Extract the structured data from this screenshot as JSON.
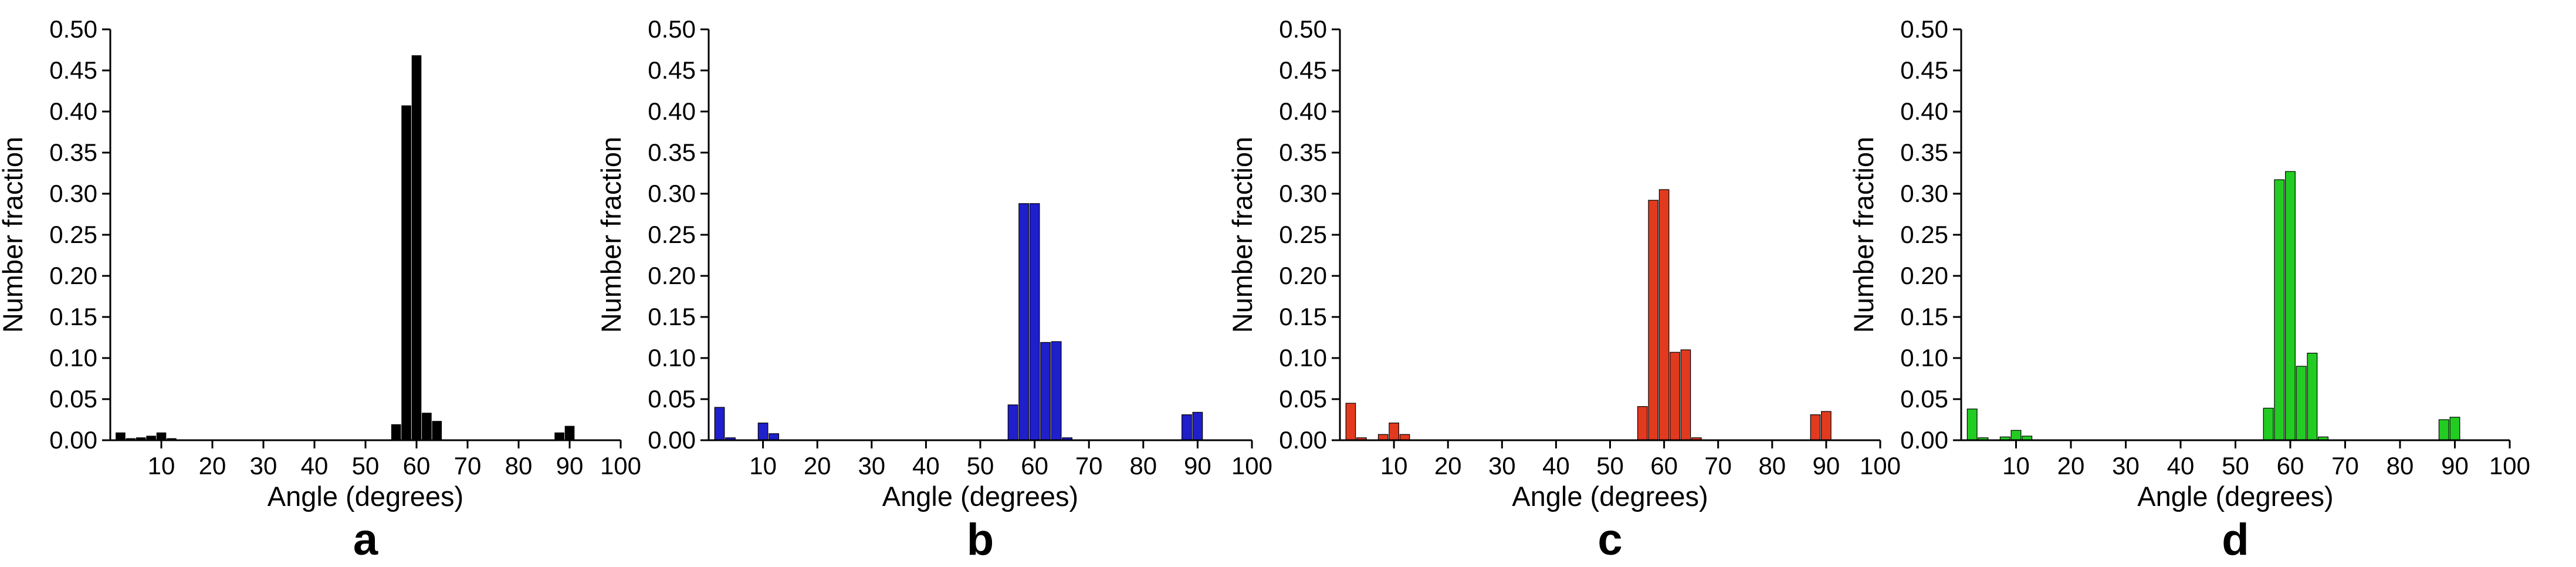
{
  "chart_data": [
    {
      "type": "bar",
      "panel_label": "a",
      "color": "#000000",
      "xlabel": "Angle (degrees)",
      "ylabel": "Number fraction",
      "xlim": [
        0,
        100
      ],
      "ylim": [
        0,
        0.5
      ],
      "xticks": [
        "10",
        "20",
        "30",
        "40",
        "50",
        "60",
        "70",
        "80",
        "90",
        "100"
      ],
      "yticks": [
        "0.00",
        "0.05",
        "0.10",
        "0.15",
        "0.20",
        "0.25",
        "0.30",
        "0.35",
        "0.40",
        "0.45",
        "0.50"
      ],
      "bin_width": 2,
      "x": [
        2,
        4,
        6,
        8,
        10,
        12,
        56,
        58,
        60,
        62,
        64,
        88,
        90
      ],
      "values": [
        0.009,
        0.002,
        0.003,
        0.005,
        0.009,
        0.002,
        0.019,
        0.407,
        0.468,
        0.033,
        0.023,
        0.009,
        0.017
      ]
    },
    {
      "type": "bar",
      "panel_label": "b",
      "color": "#1f1fcc",
      "xlabel": "Angle (degrees)",
      "ylabel": "Number fraction",
      "xlim": [
        0,
        100
      ],
      "ylim": [
        0,
        0.5
      ],
      "xticks": [
        "10",
        "20",
        "30",
        "40",
        "50",
        "60",
        "70",
        "80",
        "90",
        "100"
      ],
      "yticks": [
        "0.00",
        "0.05",
        "0.10",
        "0.15",
        "0.20",
        "0.25",
        "0.30",
        "0.35",
        "0.40",
        "0.45",
        "0.50"
      ],
      "bin_width": 2,
      "x": [
        2,
        4,
        10,
        12,
        56,
        58,
        60,
        62,
        64,
        66,
        88,
        90
      ],
      "values": [
        0.04,
        0.003,
        0.021,
        0.008,
        0.043,
        0.288,
        0.288,
        0.119,
        0.12,
        0.003,
        0.031,
        0.034
      ]
    },
    {
      "type": "bar",
      "panel_label": "c",
      "color": "#e23a1f",
      "xlabel": "Angle (degrees)",
      "ylabel": "Number fraction",
      "xlim": [
        0,
        100
      ],
      "ylim": [
        0,
        0.5
      ],
      "xticks": [
        "10",
        "20",
        "30",
        "40",
        "50",
        "60",
        "70",
        "80",
        "90",
        "100"
      ],
      "yticks": [
        "0.00",
        "0.05",
        "0.10",
        "0.15",
        "0.20",
        "0.25",
        "0.30",
        "0.35",
        "0.40",
        "0.45",
        "0.50"
      ],
      "bin_width": 2,
      "x": [
        2,
        4,
        8,
        10,
        12,
        56,
        58,
        60,
        62,
        64,
        66,
        88,
        90
      ],
      "values": [
        0.045,
        0.003,
        0.007,
        0.021,
        0.007,
        0.041,
        0.292,
        0.305,
        0.107,
        0.11,
        0.003,
        0.031,
        0.035
      ]
    },
    {
      "type": "bar",
      "panel_label": "d",
      "color": "#22cc22",
      "xlabel": "Angle (degrees)",
      "ylabel": "Number fraction",
      "xlim": [
        0,
        100
      ],
      "ylim": [
        0,
        0.5
      ],
      "xticks": [
        "10",
        "20",
        "30",
        "40",
        "50",
        "60",
        "70",
        "80",
        "90",
        "100"
      ],
      "yticks": [
        "0.00",
        "0.05",
        "0.10",
        "0.15",
        "0.20",
        "0.25",
        "0.30",
        "0.35",
        "0.40",
        "0.45",
        "0.50"
      ],
      "bin_width": 2,
      "x": [
        2,
        4,
        8,
        10,
        12,
        56,
        58,
        60,
        62,
        64,
        66,
        88,
        90
      ],
      "values": [
        0.038,
        0.003,
        0.004,
        0.012,
        0.005,
        0.039,
        0.317,
        0.327,
        0.09,
        0.106,
        0.004,
        0.025,
        0.028
      ]
    }
  ]
}
